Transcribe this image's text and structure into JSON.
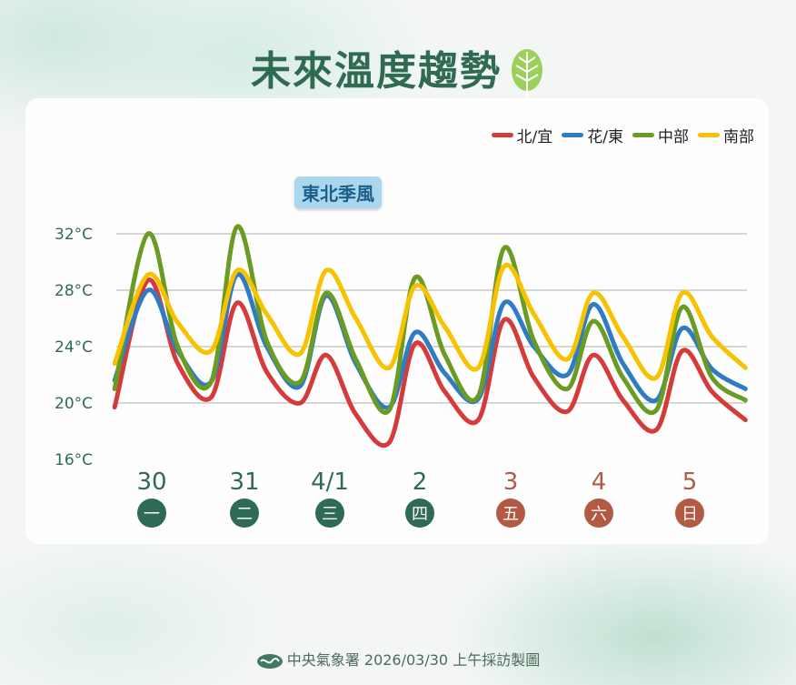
{
  "title": "未來溫度趨勢",
  "badge": "東北季風",
  "footer": "中央氣象署 2026/03/30 上午採訪製圖",
  "chart_data": {
    "type": "line",
    "title": "未來溫度趨勢",
    "yticks": [
      "32°C",
      "28°C",
      "24°C",
      "20°C",
      "16°C"
    ],
    "ylim": [
      16,
      32
    ],
    "grid": true,
    "legend_position": "top-right",
    "x_days": [
      {
        "date": "30",
        "weekday": "一",
        "weekend": false
      },
      {
        "date": "31",
        "weekday": "二",
        "weekend": false
      },
      {
        "date": "4/1",
        "weekday": "三",
        "weekend": false
      },
      {
        "date": "2",
        "weekday": "四",
        "weekend": false
      },
      {
        "date": "3",
        "weekday": "五",
        "weekend": true
      },
      {
        "date": "4",
        "weekday": "六",
        "weekend": true
      },
      {
        "date": "5",
        "weekday": "日",
        "weekend": true
      }
    ],
    "x": [
      "3/30 02:00",
      "3/30 11:00",
      "3/30 19:00",
      "3/31 04:00",
      "3/31 11:00",
      "3/31 19:00",
      "4/1 04:00",
      "4/1 11:00",
      "4/1 19:00",
      "4/2 04:00",
      "4/2 11:00",
      "4/2 19:00",
      "4/3 04:00",
      "4/3 11:00",
      "4/3 19:00",
      "4/4 04:00",
      "4/4 11:00",
      "4/4 19:00",
      "4/5 04:00",
      "4/5 11:00",
      "4/5 19:00",
      "4/6 04:00"
    ],
    "series": [
      {
        "name": "北/宜",
        "color": "#d63b3b",
        "values": [
          19.7,
          28.7,
          22.8,
          20.4,
          27.1,
          22.2,
          20.0,
          23.4,
          19.2,
          17.2,
          24.2,
          20.8,
          18.8,
          25.9,
          21.8,
          19.4,
          23.4,
          20.2,
          18.1,
          23.7,
          20.8,
          18.8
        ]
      },
      {
        "name": "花/東",
        "color": "#2f7bc4",
        "values": [
          21.6,
          28.0,
          23.7,
          21.5,
          29.1,
          24.0,
          21.2,
          27.6,
          22.8,
          19.7,
          25.0,
          22.1,
          20.3,
          27.1,
          24.0,
          22.0,
          27.0,
          22.8,
          20.2,
          25.3,
          22.4,
          21.0
        ]
      },
      {
        "name": "中部",
        "color": "#6a9b22",
        "values": [
          21.0,
          32.0,
          24.0,
          21.5,
          32.5,
          24.4,
          21.5,
          27.8,
          23.1,
          19.5,
          28.9,
          23.4,
          20.5,
          31.0,
          24.4,
          21.0,
          25.8,
          21.8,
          19.5,
          26.8,
          21.8,
          20.2
        ]
      },
      {
        "name": "南部",
        "color": "#f7c300",
        "values": [
          22.8,
          29.1,
          25.7,
          23.7,
          29.4,
          26.3,
          23.5,
          29.4,
          26.0,
          22.5,
          28.3,
          25.4,
          22.5,
          29.7,
          26.3,
          23.1,
          27.8,
          24.7,
          21.8,
          27.8,
          24.7,
          22.5
        ]
      }
    ],
    "colors": {
      "weekday": "#2f6a55",
      "weekend": "#b35a44"
    }
  }
}
